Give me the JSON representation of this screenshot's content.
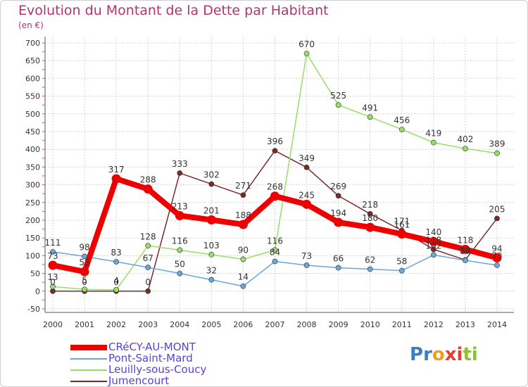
{
  "chart_data": {
    "type": "line",
    "title": "Evolution du Montant de la Dette par Habitant",
    "subtitle": "(en €)",
    "x": [
      "2000",
      "2001",
      "2002",
      "2003",
      "2004",
      "2005",
      "2006",
      "2007",
      "2008",
      "2009",
      "2010",
      "2011",
      "2012",
      "2013",
      "2014"
    ],
    "ylim": [
      -50,
      700
    ],
    "yticks": [
      -50,
      0,
      50,
      100,
      150,
      200,
      250,
      300,
      350,
      400,
      450,
      500,
      550,
      600,
      650,
      700
    ],
    "grid": true,
    "legend_position": "bottom-left",
    "series": [
      {
        "name": "CRéCY-AU-MONT",
        "color": "#ee0000",
        "values": [
          73,
          55,
          317,
          288,
          213,
          201,
          188,
          268,
          245,
          194,
          180,
          161,
          140,
          118,
          94
        ],
        "labels": [
          "73",
          "55",
          "317",
          "288",
          "213",
          "201",
          "188",
          "268",
          "245",
          "194",
          "180",
          "161",
          "140",
          "118",
          "94"
        ]
      },
      {
        "name": "Pont-Saint-Mard",
        "color": "#6aa7d8",
        "values": [
          111,
          98,
          83,
          67,
          50,
          32,
          14,
          84,
          73,
          66,
          62,
          58,
          102,
          87,
          73
        ],
        "labels": [
          "111",
          "98",
          "83",
          "67",
          "50",
          "32",
          "14",
          "84",
          "73",
          "66",
          "62",
          "58",
          "102",
          "87",
          "73"
        ]
      },
      {
        "name": "Leuilly-sous-Coucy",
        "color": "#99dd66",
        "values": [
          13,
          5,
          4,
          128,
          116,
          103,
          90,
          116,
          670,
          525,
          491,
          456,
          419,
          402,
          389
        ],
        "labels": [
          "13",
          "5",
          "4",
          "128",
          "116",
          "103",
          "90",
          "116",
          "670",
          "525",
          "491",
          "456",
          "419",
          "402",
          "389"
        ]
      },
      {
        "name": "Jumencourt",
        "color": "#7a2a2a",
        "values": [
          0,
          0,
          0,
          0,
          333,
          302,
          271,
          396,
          349,
          269,
          218,
          171,
          118,
          88,
          205
        ],
        "labels": [
          "0",
          "0",
          "0",
          "0",
          "333",
          "302",
          "271",
          "396",
          "349",
          "269",
          "218",
          "171",
          "118",
          "88",
          "205"
        ]
      }
    ]
  },
  "logo": {
    "text": "Proxiti",
    "letters": [
      "P",
      "r",
      "o",
      "x",
      "i",
      "t",
      "i"
    ],
    "colors": [
      "#3a7fc4",
      "#3a7fc4",
      "#f29c1f",
      "#e2412d",
      "#e2412d",
      "#8bbf3c",
      "#8bbf3c"
    ]
  }
}
